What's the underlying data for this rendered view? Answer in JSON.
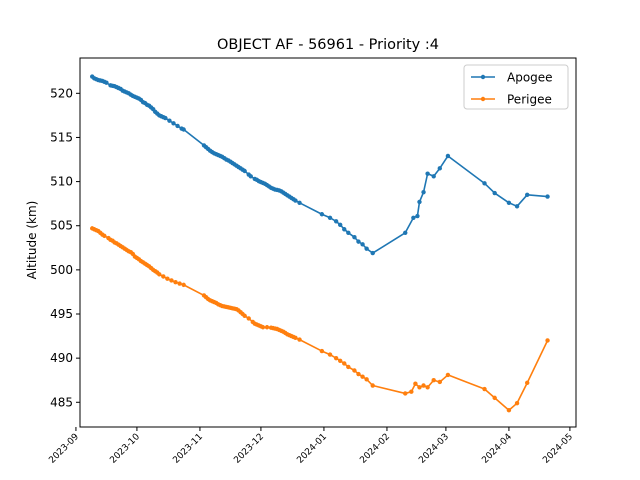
{
  "chart_data": {
    "type": "line",
    "title": "OBJECT AF - 56961 - Priority :4",
    "xlabel": "",
    "ylabel": "Altitude (km)",
    "xlim": [
      "2023-09-03",
      "2024-05-04"
    ],
    "ylim": [
      482.2,
      524.0
    ],
    "x_ticks": [
      "2023-09",
      "2023-10",
      "2023-11",
      "2023-12",
      "2024-01",
      "2024-02",
      "2024-03",
      "2024-04",
      "2024-05"
    ],
    "y_ticks": [
      485,
      490,
      495,
      500,
      505,
      510,
      515,
      520
    ],
    "legend_position": "top-right",
    "grid": false,
    "series": [
      {
        "name": "Apogee",
        "color": "#1f77b4",
        "points": [
          [
            "2023-09-09",
            521.9
          ],
          [
            "2023-09-10",
            521.7
          ],
          [
            "2023-09-11",
            521.6
          ],
          [
            "2023-09-12",
            521.5
          ],
          [
            "2023-09-13",
            521.45
          ],
          [
            "2023-09-14",
            521.4
          ],
          [
            "2023-09-15",
            521.3
          ],
          [
            "2023-09-16",
            521.2
          ],
          [
            "2023-09-18",
            520.9
          ],
          [
            "2023-09-19",
            520.85
          ],
          [
            "2023-09-20",
            520.8
          ],
          [
            "2023-09-21",
            520.7
          ],
          [
            "2023-09-22",
            520.6
          ],
          [
            "2023-09-23",
            520.5
          ],
          [
            "2023-09-24",
            520.3
          ],
          [
            "2023-09-25",
            520.2
          ],
          [
            "2023-09-26",
            520.1
          ],
          [
            "2023-09-27",
            520.0
          ],
          [
            "2023-09-28",
            519.85
          ],
          [
            "2023-09-29",
            519.7
          ],
          [
            "2023-09-30",
            519.6
          ],
          [
            "2023-10-01",
            519.5
          ],
          [
            "2023-10-02",
            519.4
          ],
          [
            "2023-10-03",
            519.25
          ],
          [
            "2023-10-04",
            519.0
          ],
          [
            "2023-10-05",
            518.9
          ],
          [
            "2023-10-06",
            518.7
          ],
          [
            "2023-10-07",
            518.6
          ],
          [
            "2023-10-08",
            518.4
          ],
          [
            "2023-10-09",
            518.2
          ],
          [
            "2023-10-10",
            517.9
          ],
          [
            "2023-10-11",
            517.7
          ],
          [
            "2023-10-12",
            517.5
          ],
          [
            "2023-10-13",
            517.4
          ],
          [
            "2023-10-14",
            517.3
          ],
          [
            "2023-10-15",
            517.2
          ],
          [
            "2023-10-17",
            516.9
          ],
          [
            "2023-10-19",
            516.6
          ],
          [
            "2023-10-21",
            516.3
          ],
          [
            "2023-10-23",
            516.0
          ],
          [
            "2023-10-24",
            515.9
          ],
          [
            "2023-11-03",
            514.1
          ],
          [
            "2023-11-04",
            513.9
          ],
          [
            "2023-11-05",
            513.7
          ],
          [
            "2023-11-06",
            513.5
          ],
          [
            "2023-11-07",
            513.35
          ],
          [
            "2023-11-08",
            513.2
          ],
          [
            "2023-11-09",
            513.1
          ],
          [
            "2023-11-10",
            513.0
          ],
          [
            "2023-11-11",
            512.9
          ],
          [
            "2023-11-12",
            512.8
          ],
          [
            "2023-11-13",
            512.65
          ],
          [
            "2023-11-14",
            512.5
          ],
          [
            "2023-11-15",
            512.4
          ],
          [
            "2023-11-16",
            512.25
          ],
          [
            "2023-11-17",
            512.1
          ],
          [
            "2023-11-18",
            511.95
          ],
          [
            "2023-11-19",
            511.8
          ],
          [
            "2023-11-20",
            511.65
          ],
          [
            "2023-11-21",
            511.5
          ],
          [
            "2023-11-22",
            511.35
          ],
          [
            "2023-11-23",
            511.2
          ],
          [
            "2023-11-25",
            510.8
          ],
          [
            "2023-11-26",
            510.6
          ],
          [
            "2023-11-28",
            510.3
          ],
          [
            "2023-11-29",
            510.2
          ],
          [
            "2023-11-30",
            510.05
          ],
          [
            "2023-12-01",
            509.95
          ],
          [
            "2023-12-02",
            509.85
          ],
          [
            "2023-12-03",
            509.75
          ],
          [
            "2023-12-04",
            509.6
          ],
          [
            "2023-12-05",
            509.45
          ],
          [
            "2023-12-06",
            509.3
          ],
          [
            "2023-12-07",
            509.2
          ],
          [
            "2023-12-08",
            509.1
          ],
          [
            "2023-12-09",
            509.05
          ],
          [
            "2023-12-10",
            509.0
          ],
          [
            "2023-12-11",
            508.9
          ],
          [
            "2023-12-12",
            508.75
          ],
          [
            "2023-12-13",
            508.6
          ],
          [
            "2023-12-14",
            508.45
          ],
          [
            "2023-12-15",
            508.3
          ],
          [
            "2023-12-16",
            508.15
          ],
          [
            "2023-12-17",
            508.0
          ],
          [
            "2023-12-18",
            507.85
          ],
          [
            "2023-12-20",
            507.6
          ],
          [
            "2023-12-31",
            506.3
          ],
          [
            "2024-01-04",
            505.9
          ],
          [
            "2024-01-07",
            505.5
          ],
          [
            "2024-01-09",
            505.1
          ],
          [
            "2024-01-11",
            504.6
          ],
          [
            "2024-01-13",
            504.2
          ],
          [
            "2024-01-16",
            503.7
          ],
          [
            "2024-01-18",
            503.2
          ],
          [
            "2024-01-20",
            502.9
          ],
          [
            "2024-01-22",
            502.4
          ],
          [
            "2024-01-25",
            501.9
          ],
          [
            "2024-02-10",
            504.2
          ],
          [
            "2024-02-14",
            505.9
          ],
          [
            "2024-02-16",
            506.1
          ],
          [
            "2024-02-17",
            507.7
          ],
          [
            "2024-02-19",
            508.8
          ],
          [
            "2024-02-21",
            510.9
          ],
          [
            "2024-02-24",
            510.6
          ],
          [
            "2024-02-27",
            511.5
          ],
          [
            "2024-03-02",
            512.9
          ],
          [
            "2024-03-20",
            509.8
          ],
          [
            "2024-03-25",
            508.7
          ],
          [
            "2024-04-01",
            507.6
          ],
          [
            "2024-04-05",
            507.2
          ],
          [
            "2024-04-10",
            508.5
          ],
          [
            "2024-04-20",
            508.3
          ]
        ]
      },
      {
        "name": "Perigee",
        "color": "#ff7f0e",
        "points": [
          [
            "2023-09-09",
            504.7
          ],
          [
            "2023-09-10",
            504.6
          ],
          [
            "2023-09-11",
            504.5
          ],
          [
            "2023-09-12",
            504.4
          ],
          [
            "2023-09-13",
            504.2
          ],
          [
            "2023-09-14",
            504.0
          ],
          [
            "2023-09-15",
            503.85
          ],
          [
            "2023-09-17",
            503.6
          ],
          [
            "2023-09-18",
            503.4
          ],
          [
            "2023-09-19",
            503.3
          ],
          [
            "2023-09-20",
            503.1
          ],
          [
            "2023-09-21",
            503.0
          ],
          [
            "2023-09-22",
            502.85
          ],
          [
            "2023-09-23",
            502.7
          ],
          [
            "2023-09-24",
            502.55
          ],
          [
            "2023-09-25",
            502.4
          ],
          [
            "2023-09-26",
            502.25
          ],
          [
            "2023-09-27",
            502.1
          ],
          [
            "2023-09-28",
            502.0
          ],
          [
            "2023-09-29",
            501.8
          ],
          [
            "2023-09-30",
            501.5
          ],
          [
            "2023-10-01",
            501.35
          ],
          [
            "2023-10-02",
            501.2
          ],
          [
            "2023-10-03",
            501.0
          ],
          [
            "2023-10-04",
            500.85
          ],
          [
            "2023-10-05",
            500.7
          ],
          [
            "2023-10-06",
            500.55
          ],
          [
            "2023-10-07",
            500.4
          ],
          [
            "2023-10-08",
            500.2
          ],
          [
            "2023-10-09",
            500.0
          ],
          [
            "2023-10-10",
            499.85
          ],
          [
            "2023-10-11",
            499.7
          ],
          [
            "2023-10-12",
            499.5
          ],
          [
            "2023-10-14",
            499.25
          ],
          [
            "2023-10-16",
            499.0
          ],
          [
            "2023-10-18",
            498.8
          ],
          [
            "2023-10-20",
            498.6
          ],
          [
            "2023-10-22",
            498.45
          ],
          [
            "2023-10-24",
            498.3
          ],
          [
            "2023-11-03",
            497.1
          ],
          [
            "2023-11-04",
            496.9
          ],
          [
            "2023-11-05",
            496.7
          ],
          [
            "2023-11-06",
            496.55
          ],
          [
            "2023-11-07",
            496.45
          ],
          [
            "2023-11-08",
            496.35
          ],
          [
            "2023-11-09",
            496.25
          ],
          [
            "2023-11-10",
            496.1
          ],
          [
            "2023-11-11",
            496.0
          ],
          [
            "2023-11-12",
            495.9
          ],
          [
            "2023-11-13",
            495.85
          ],
          [
            "2023-11-14",
            495.8
          ],
          [
            "2023-11-15",
            495.75
          ],
          [
            "2023-11-16",
            495.7
          ],
          [
            "2023-11-17",
            495.65
          ],
          [
            "2023-11-18",
            495.6
          ],
          [
            "2023-11-19",
            495.55
          ],
          [
            "2023-11-20",
            495.4
          ],
          [
            "2023-11-21",
            495.2
          ],
          [
            "2023-11-22",
            495.0
          ],
          [
            "2023-11-23",
            494.8
          ],
          [
            "2023-11-25",
            494.5
          ],
          [
            "2023-11-27",
            494.1
          ],
          [
            "2023-11-28",
            493.9
          ],
          [
            "2023-11-29",
            493.8
          ],
          [
            "2023-11-30",
            493.7
          ],
          [
            "2023-12-01",
            493.6
          ],
          [
            "2023-12-02",
            493.5
          ],
          [
            "2023-12-04",
            493.5
          ],
          [
            "2023-12-06",
            493.45
          ],
          [
            "2023-12-07",
            493.4
          ],
          [
            "2023-12-08",
            493.35
          ],
          [
            "2023-12-09",
            493.3
          ],
          [
            "2023-12-10",
            493.2
          ],
          [
            "2023-12-11",
            493.1
          ],
          [
            "2023-12-12",
            493.0
          ],
          [
            "2023-12-13",
            492.85
          ],
          [
            "2023-12-14",
            492.7
          ],
          [
            "2023-12-15",
            492.6
          ],
          [
            "2023-12-16",
            492.5
          ],
          [
            "2023-12-17",
            492.4
          ],
          [
            "2023-12-18",
            492.3
          ],
          [
            "2023-12-20",
            492.1
          ],
          [
            "2023-12-31",
            490.8
          ],
          [
            "2024-01-04",
            490.4
          ],
          [
            "2024-01-07",
            490.0
          ],
          [
            "2024-01-09",
            489.7
          ],
          [
            "2024-01-11",
            489.4
          ],
          [
            "2024-01-13",
            489.0
          ],
          [
            "2024-01-16",
            488.6
          ],
          [
            "2024-01-18",
            488.2
          ],
          [
            "2024-01-20",
            487.9
          ],
          [
            "2024-01-22",
            487.6
          ],
          [
            "2024-01-25",
            486.9
          ],
          [
            "2024-02-10",
            486.0
          ],
          [
            "2024-02-13",
            486.2
          ],
          [
            "2024-02-15",
            487.1
          ],
          [
            "2024-02-17",
            486.7
          ],
          [
            "2024-02-19",
            486.9
          ],
          [
            "2024-02-21",
            486.7
          ],
          [
            "2024-02-24",
            487.5
          ],
          [
            "2024-02-27",
            487.3
          ],
          [
            "2024-03-02",
            488.1
          ],
          [
            "2024-03-20",
            486.5
          ],
          [
            "2024-03-25",
            485.5
          ],
          [
            "2024-04-01",
            484.1
          ],
          [
            "2024-04-05",
            484.9
          ],
          [
            "2024-04-10",
            487.2
          ],
          [
            "2024-04-20",
            492.0
          ]
        ]
      }
    ]
  }
}
